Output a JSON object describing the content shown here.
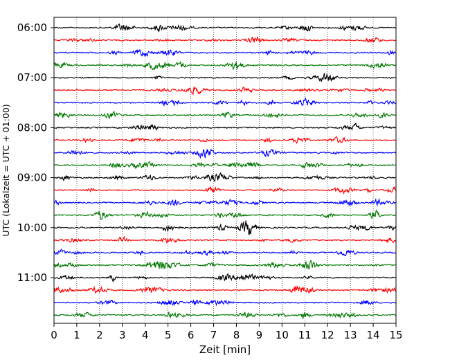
{
  "chart_data": {
    "type": "line",
    "title": "",
    "xlabel": "Zeit  [min]",
    "ylabel": "UTC (Lokalzeit = UTC + 01:00)",
    "xlim": [
      0,
      15
    ],
    "x_ticks": [
      "0",
      "1",
      "2",
      "3",
      "4",
      "5",
      "6",
      "7",
      "8",
      "9",
      "10",
      "11",
      "12",
      "13",
      "14",
      "15"
    ],
    "y_ticks": [
      {
        "label": "06:00",
        "trace": 0
      },
      {
        "label": "07:00",
        "trace": 4
      },
      {
        "label": "08:00",
        "trace": 8
      },
      {
        "label": "09:00",
        "trace": 12
      },
      {
        "label": "10:00",
        "trace": 16
      },
      {
        "label": "11:00",
        "trace": 20
      }
    ],
    "grid": "vertical dotted at each minute",
    "trace_interval_min": 15,
    "trace_count": 24,
    "trace_colors": [
      "#000000",
      "#ff0000",
      "#0000ff",
      "#007700"
    ],
    "traces_start": "06:00",
    "traces_end": "11:45"
  }
}
